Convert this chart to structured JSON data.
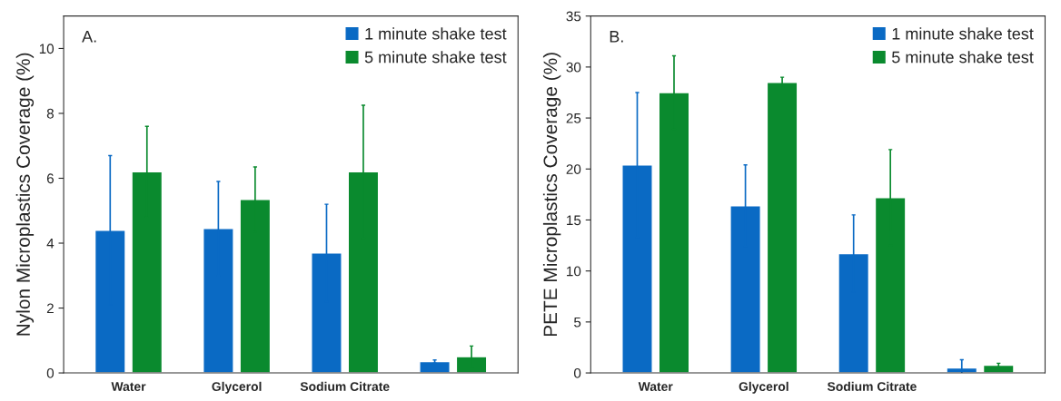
{
  "chart_data": [
    {
      "type": "bar",
      "annotations": [
        "A."
      ],
      "ylabel": "Nylon Microplastics Coverage (%)",
      "categories": [
        "Water",
        "Glycerol",
        "Sodium Citrate",
        null
      ],
      "ylim": [
        0,
        11
      ],
      "yticks": [
        0,
        2,
        4,
        6,
        8,
        10
      ],
      "legend": "top right",
      "grid": false,
      "series": [
        {
          "name": "1 minute shake test",
          "color": "#0a6ac4",
          "values": [
            4.4,
            4.45,
            3.7,
            0.35
          ],
          "errors": [
            2.3,
            1.45,
            1.5,
            0.05
          ]
        },
        {
          "name": "5 minute shake test",
          "color": "#0a8a2e",
          "values": [
            6.2,
            5.35,
            6.2,
            0.5
          ],
          "errors": [
            1.4,
            1.0,
            2.05,
            0.33
          ]
        }
      ]
    },
    {
      "type": "bar",
      "annotations": [
        "B."
      ],
      "ylabel": "PETE Microplastics Coverage (%)",
      "categories": [
        "Water",
        "Glycerol",
        "Sodium Citrate",
        null
      ],
      "ylim": [
        0,
        35
      ],
      "yticks": [
        0,
        5,
        10,
        15,
        20,
        25,
        30,
        35
      ],
      "legend": "top right",
      "grid": false,
      "series": [
        {
          "name": "1 minute shake test",
          "color": "#0a6ac4",
          "values": [
            20.4,
            16.4,
            11.7,
            0.5
          ],
          "errors": [
            7.1,
            4.0,
            3.8,
            0.8
          ]
        },
        {
          "name": "5 minute shake test",
          "color": "#0a8a2e",
          "values": [
            27.5,
            28.5,
            17.2,
            0.75
          ],
          "errors": [
            3.6,
            0.5,
            4.7,
            0.2
          ]
        }
      ]
    }
  ]
}
